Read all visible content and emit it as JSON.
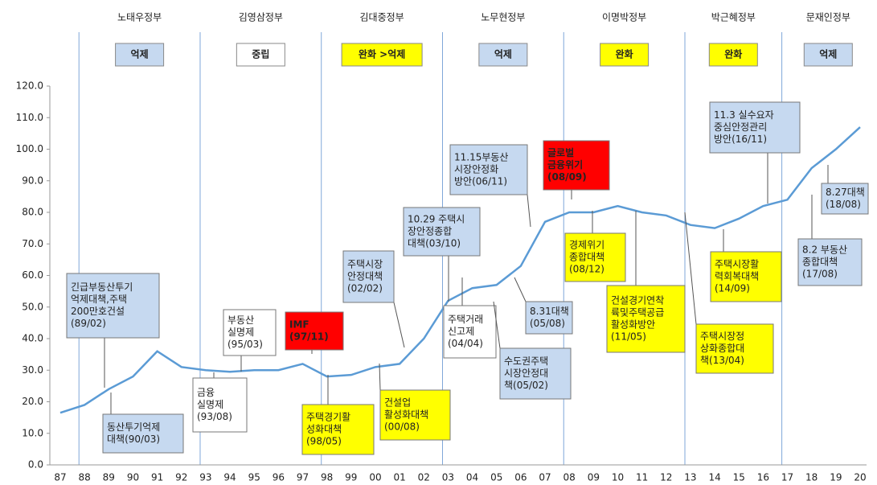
{
  "chart_data": {
    "type": "line",
    "categories": [
      "87",
      "88",
      "89",
      "90",
      "91",
      "92",
      "93",
      "94",
      "95",
      "96",
      "97",
      "98",
      "99",
      "00",
      "01",
      "02",
      "03",
      "04",
      "05",
      "06",
      "07",
      "08",
      "09",
      "10",
      "11",
      "12",
      "13",
      "14",
      "15",
      "16",
      "17",
      "18",
      "19",
      "20"
    ],
    "values": [
      16.5,
      19,
      24,
      28,
      36,
      31,
      30,
      29.5,
      30,
      30,
      32,
      28,
      28.5,
      31,
      32,
      40,
      52,
      56,
      57,
      63,
      77,
      80,
      80,
      82,
      80,
      79,
      76,
      75,
      78,
      82,
      84,
      94,
      100,
      107
    ],
    "color": "#5b9bd5",
    "ylim": [
      0,
      120
    ],
    "yticks": [
      {
        "value": 0,
        "label": "0.0"
      },
      {
        "value": 10,
        "label": "10.0"
      },
      {
        "value": 20,
        "label": "20.0"
      },
      {
        "value": 30,
        "label": "30.0"
      },
      {
        "value": 40,
        "label": "40.0"
      },
      {
        "value": 50,
        "label": "50.0"
      },
      {
        "value": 60,
        "label": "60.0"
      },
      {
        "value": 70,
        "label": "70.0"
      },
      {
        "value": 80,
        "label": "80.0"
      },
      {
        "value": 90,
        "label": "90.0"
      },
      {
        "value": 100,
        "label": "100.0"
      },
      {
        "value": 110,
        "label": "110.0"
      },
      {
        "value": 120,
        "label": "120.0"
      }
    ]
  },
  "governments": [
    {
      "name": "노태우정부",
      "policy": "억제",
      "color": "#c6d9f0"
    },
    {
      "name": "김영삼정부",
      "policy": "중립",
      "color": "#ffffff"
    },
    {
      "name": "김대중정부",
      "policy": "완화 >억제",
      "color": "#ffff00"
    },
    {
      "name": "노무현정부",
      "policy": "억제",
      "color": "#c6d9f0"
    },
    {
      "name": "이명박정부",
      "policy": "완화",
      "color": "#ffff00"
    },
    {
      "name": "박근혜정부",
      "policy": "완화",
      "color": "#ffff00"
    },
    {
      "name": "문재인정부",
      "policy": "억제",
      "color": "#c6d9f0"
    }
  ],
  "annotations": [
    {
      "lines": [
        "긴급부동산투기",
        "억제대책,주택",
        "200만호건설",
        "(89/02)"
      ],
      "color": "#c6d9f0"
    },
    {
      "lines": [
        "동산투기억제",
        "대책(90/03)"
      ],
      "color": "#c6d9f0"
    },
    {
      "lines": [
        "부동산",
        "실명제",
        "(95/03)"
      ],
      "color": "#ffffff"
    },
    {
      "lines": [
        "금융",
        "실명제",
        "(93/08)"
      ],
      "color": "#ffffff"
    },
    {
      "lines": [
        "IMF",
        "(97/11)"
      ],
      "color": "#ff0000"
    },
    {
      "lines": [
        "주택경기활",
        "성화대책",
        "(98/05)"
      ],
      "color": "#ffff00"
    },
    {
      "lines": [
        "건설업",
        "활성화대책",
        "(00/08)"
      ],
      "color": "#ffff00"
    },
    {
      "lines": [
        "주택시장",
        "안정대책",
        "(02/02)"
      ],
      "color": "#c6d9f0"
    },
    {
      "lines": [
        "10.29 주택시",
        "장안정종합",
        "대책(03/10)"
      ],
      "color": "#c6d9f0"
    },
    {
      "lines": [
        "주택거래",
        "신고제",
        "(04/04)"
      ],
      "color": "#ffffff"
    },
    {
      "lines": [
        "수도권주택",
        "시장안정대",
        "책(05/02)"
      ],
      "color": "#c6d9f0"
    },
    {
      "lines": [
        "8.31대책",
        "(05/08)"
      ],
      "color": "#c6d9f0"
    },
    {
      "lines": [
        "11.15부동산",
        "시장안정화",
        "방안(06/11)"
      ],
      "color": "#c6d9f0"
    },
    {
      "lines": [
        "글로벌",
        "금융위기",
        "(08/09)"
      ],
      "color": "#ff0000"
    },
    {
      "lines": [
        "경제위기",
        "종합대책",
        "(08/12)"
      ],
      "color": "#ffff00"
    },
    {
      "lines": [
        "건설경기연착",
        "륙및주택공급",
        "활성화방안",
        "(11/05)"
      ],
      "color": "#ffff00"
    },
    {
      "lines": [
        "주택시장정",
        "상화종합대",
        "책(13/04)"
      ],
      "color": "#ffff00"
    },
    {
      "lines": [
        "주택시장활",
        "력회복대책",
        "(14/09)"
      ],
      "color": "#ffff00"
    },
    {
      "lines": [
        "11.3 실수요자",
        "중심안정관리",
        "방안(16/11)"
      ],
      "color": "#c6d9f0"
    },
    {
      "lines": [
        "8.27대책",
        "(18/08)"
      ],
      "color": "#c6d9f0"
    },
    {
      "lines": [
        "8.2 부동산",
        "종합대책",
        "(17/08)"
      ],
      "color": "#c6d9f0"
    }
  ]
}
